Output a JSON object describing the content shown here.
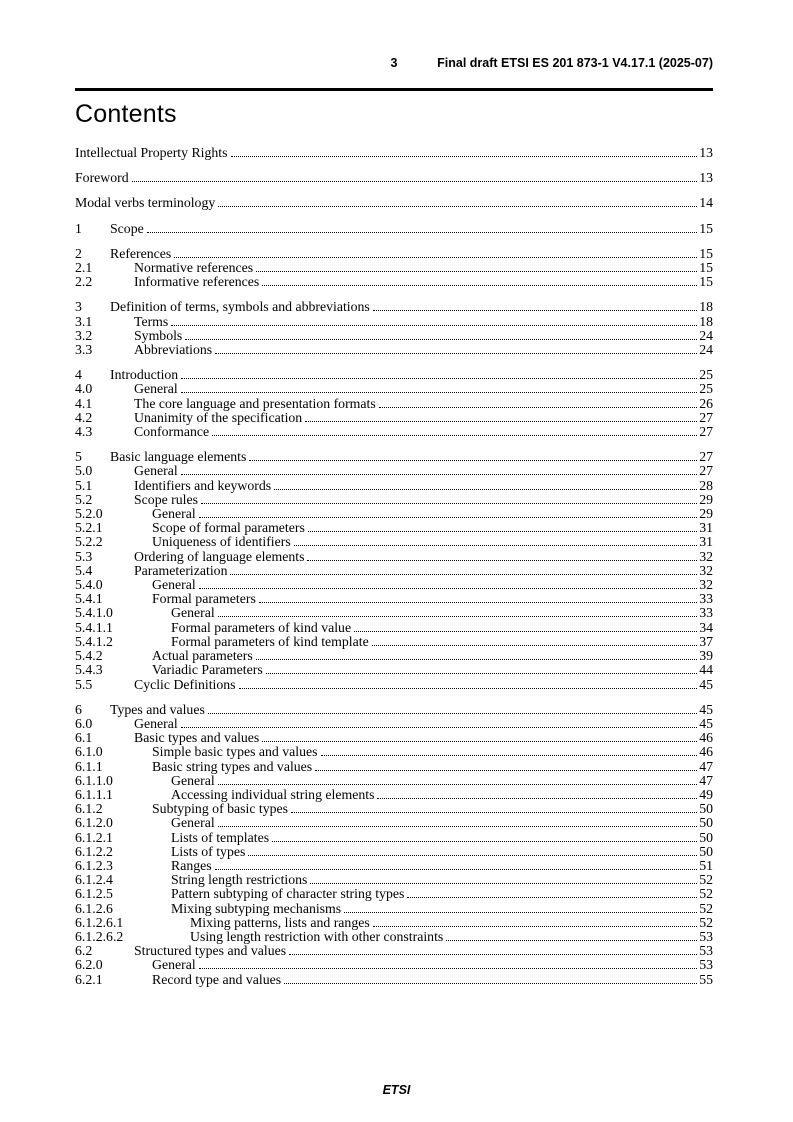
{
  "header": {
    "page_number": "3",
    "doc_title": "Final draft ETSI ES 201 873-1 V4.17.1 (2025-07)"
  },
  "title": "Contents",
  "footer": {
    "label": "ETSI"
  },
  "toc": {
    "groups": [
      {
        "entries": [
          {
            "num": "",
            "title": "Intellectual Property Rights",
            "page": "13"
          }
        ]
      },
      {
        "entries": [
          {
            "num": "",
            "title": "Foreword",
            "page": "13"
          }
        ]
      },
      {
        "entries": [
          {
            "num": "",
            "title": "Modal verbs terminology",
            "page": "14"
          }
        ]
      },
      {
        "entries": [
          {
            "num": "1",
            "title": "Scope",
            "page": "15"
          }
        ]
      },
      {
        "entries": [
          {
            "num": "2",
            "title": "References",
            "page": "15"
          },
          {
            "num": "2.1",
            "title": "Normative references",
            "page": "15"
          },
          {
            "num": "2.2",
            "title": "Informative references",
            "page": "15"
          }
        ]
      },
      {
        "entries": [
          {
            "num": "3",
            "title": "Definition of terms, symbols and abbreviations",
            "page": "18"
          },
          {
            "num": "3.1",
            "title": "Terms",
            "page": "18"
          },
          {
            "num": "3.2",
            "title": "Symbols",
            "page": "24"
          },
          {
            "num": "3.3",
            "title": "Abbreviations",
            "page": "24"
          }
        ]
      },
      {
        "entries": [
          {
            "num": "4",
            "title": "Introduction",
            "page": "25"
          },
          {
            "num": "4.0",
            "title": "General",
            "page": "25"
          },
          {
            "num": "4.1",
            "title": "The core language and presentation formats",
            "page": "26"
          },
          {
            "num": "4.2",
            "title": "Unanimity of the specification",
            "page": "27"
          },
          {
            "num": "4.3",
            "title": "Conformance",
            "page": "27"
          }
        ]
      },
      {
        "entries": [
          {
            "num": "5",
            "title": "Basic language elements",
            "page": "27"
          },
          {
            "num": "5.0",
            "title": "General",
            "page": "27"
          },
          {
            "num": "5.1",
            "title": "Identifiers and keywords",
            "page": "28"
          },
          {
            "num": "5.2",
            "title": "Scope rules",
            "page": "29"
          },
          {
            "num": "5.2.0",
            "title": "General",
            "page": "29"
          },
          {
            "num": "5.2.1",
            "title": "Scope of formal parameters",
            "page": "31"
          },
          {
            "num": "5.2.2",
            "title": "Uniqueness of identifiers",
            "page": "31"
          },
          {
            "num": "5.3",
            "title": "Ordering of language elements",
            "page": "32"
          },
          {
            "num": "5.4",
            "title": "Parameterization",
            "page": "32"
          },
          {
            "num": "5.4.0",
            "title": "General",
            "page": "32"
          },
          {
            "num": "5.4.1",
            "title": "Formal parameters",
            "page": "33"
          },
          {
            "num": "5.4.1.0",
            "title": "General",
            "page": "33"
          },
          {
            "num": "5.4.1.1",
            "title": "Formal parameters of kind value",
            "page": "34"
          },
          {
            "num": "5.4.1.2",
            "title": "Formal parameters of kind template",
            "page": "37"
          },
          {
            "num": "5.4.2",
            "title": "Actual parameters",
            "page": "39"
          },
          {
            "num": "5.4.3",
            "title": "Variadic Parameters",
            "page": "44"
          },
          {
            "num": "5.5",
            "title": "Cyclic Definitions",
            "page": "45"
          }
        ]
      },
      {
        "entries": [
          {
            "num": "6",
            "title": "Types and values",
            "page": "45"
          },
          {
            "num": "6.0",
            "title": "General",
            "page": "45"
          },
          {
            "num": "6.1",
            "title": "Basic types and values",
            "page": "46"
          },
          {
            "num": "6.1.0",
            "title": "Simple basic types and values",
            "page": "46"
          },
          {
            "num": "6.1.1",
            "title": "Basic string types and values",
            "page": "47"
          },
          {
            "num": "6.1.1.0",
            "title": "General",
            "page": "47"
          },
          {
            "num": "6.1.1.1",
            "title": "Accessing individual string elements",
            "page": "49"
          },
          {
            "num": "6.1.2",
            "title": "Subtyping of basic types",
            "page": "50"
          },
          {
            "num": "6.1.2.0",
            "title": "General",
            "page": "50"
          },
          {
            "num": "6.1.2.1",
            "title": "Lists of templates",
            "page": "50"
          },
          {
            "num": "6.1.2.2",
            "title": "Lists of types",
            "page": "50"
          },
          {
            "num": "6.1.2.3",
            "title": "Ranges",
            "page": "51"
          },
          {
            "num": "6.1.2.4",
            "title": "String length restrictions",
            "page": "52"
          },
          {
            "num": "6.1.2.5",
            "title": "Pattern subtyping of character string types",
            "page": "52"
          },
          {
            "num": "6.1.2.6",
            "title": "Mixing subtyping mechanisms",
            "page": "52"
          },
          {
            "num": "6.1.2.6.1",
            "title": "Mixing patterns, lists and ranges",
            "page": "52"
          },
          {
            "num": "6.1.2.6.2",
            "title": "Using length restriction with other constraints",
            "page": "53"
          },
          {
            "num": "6.2",
            "title": "Structured types and values",
            "page": "53"
          },
          {
            "num": "6.2.0",
            "title": "General",
            "page": "53"
          },
          {
            "num": "6.2.1",
            "title": "Record type and values",
            "page": "55"
          }
        ]
      }
    ]
  }
}
